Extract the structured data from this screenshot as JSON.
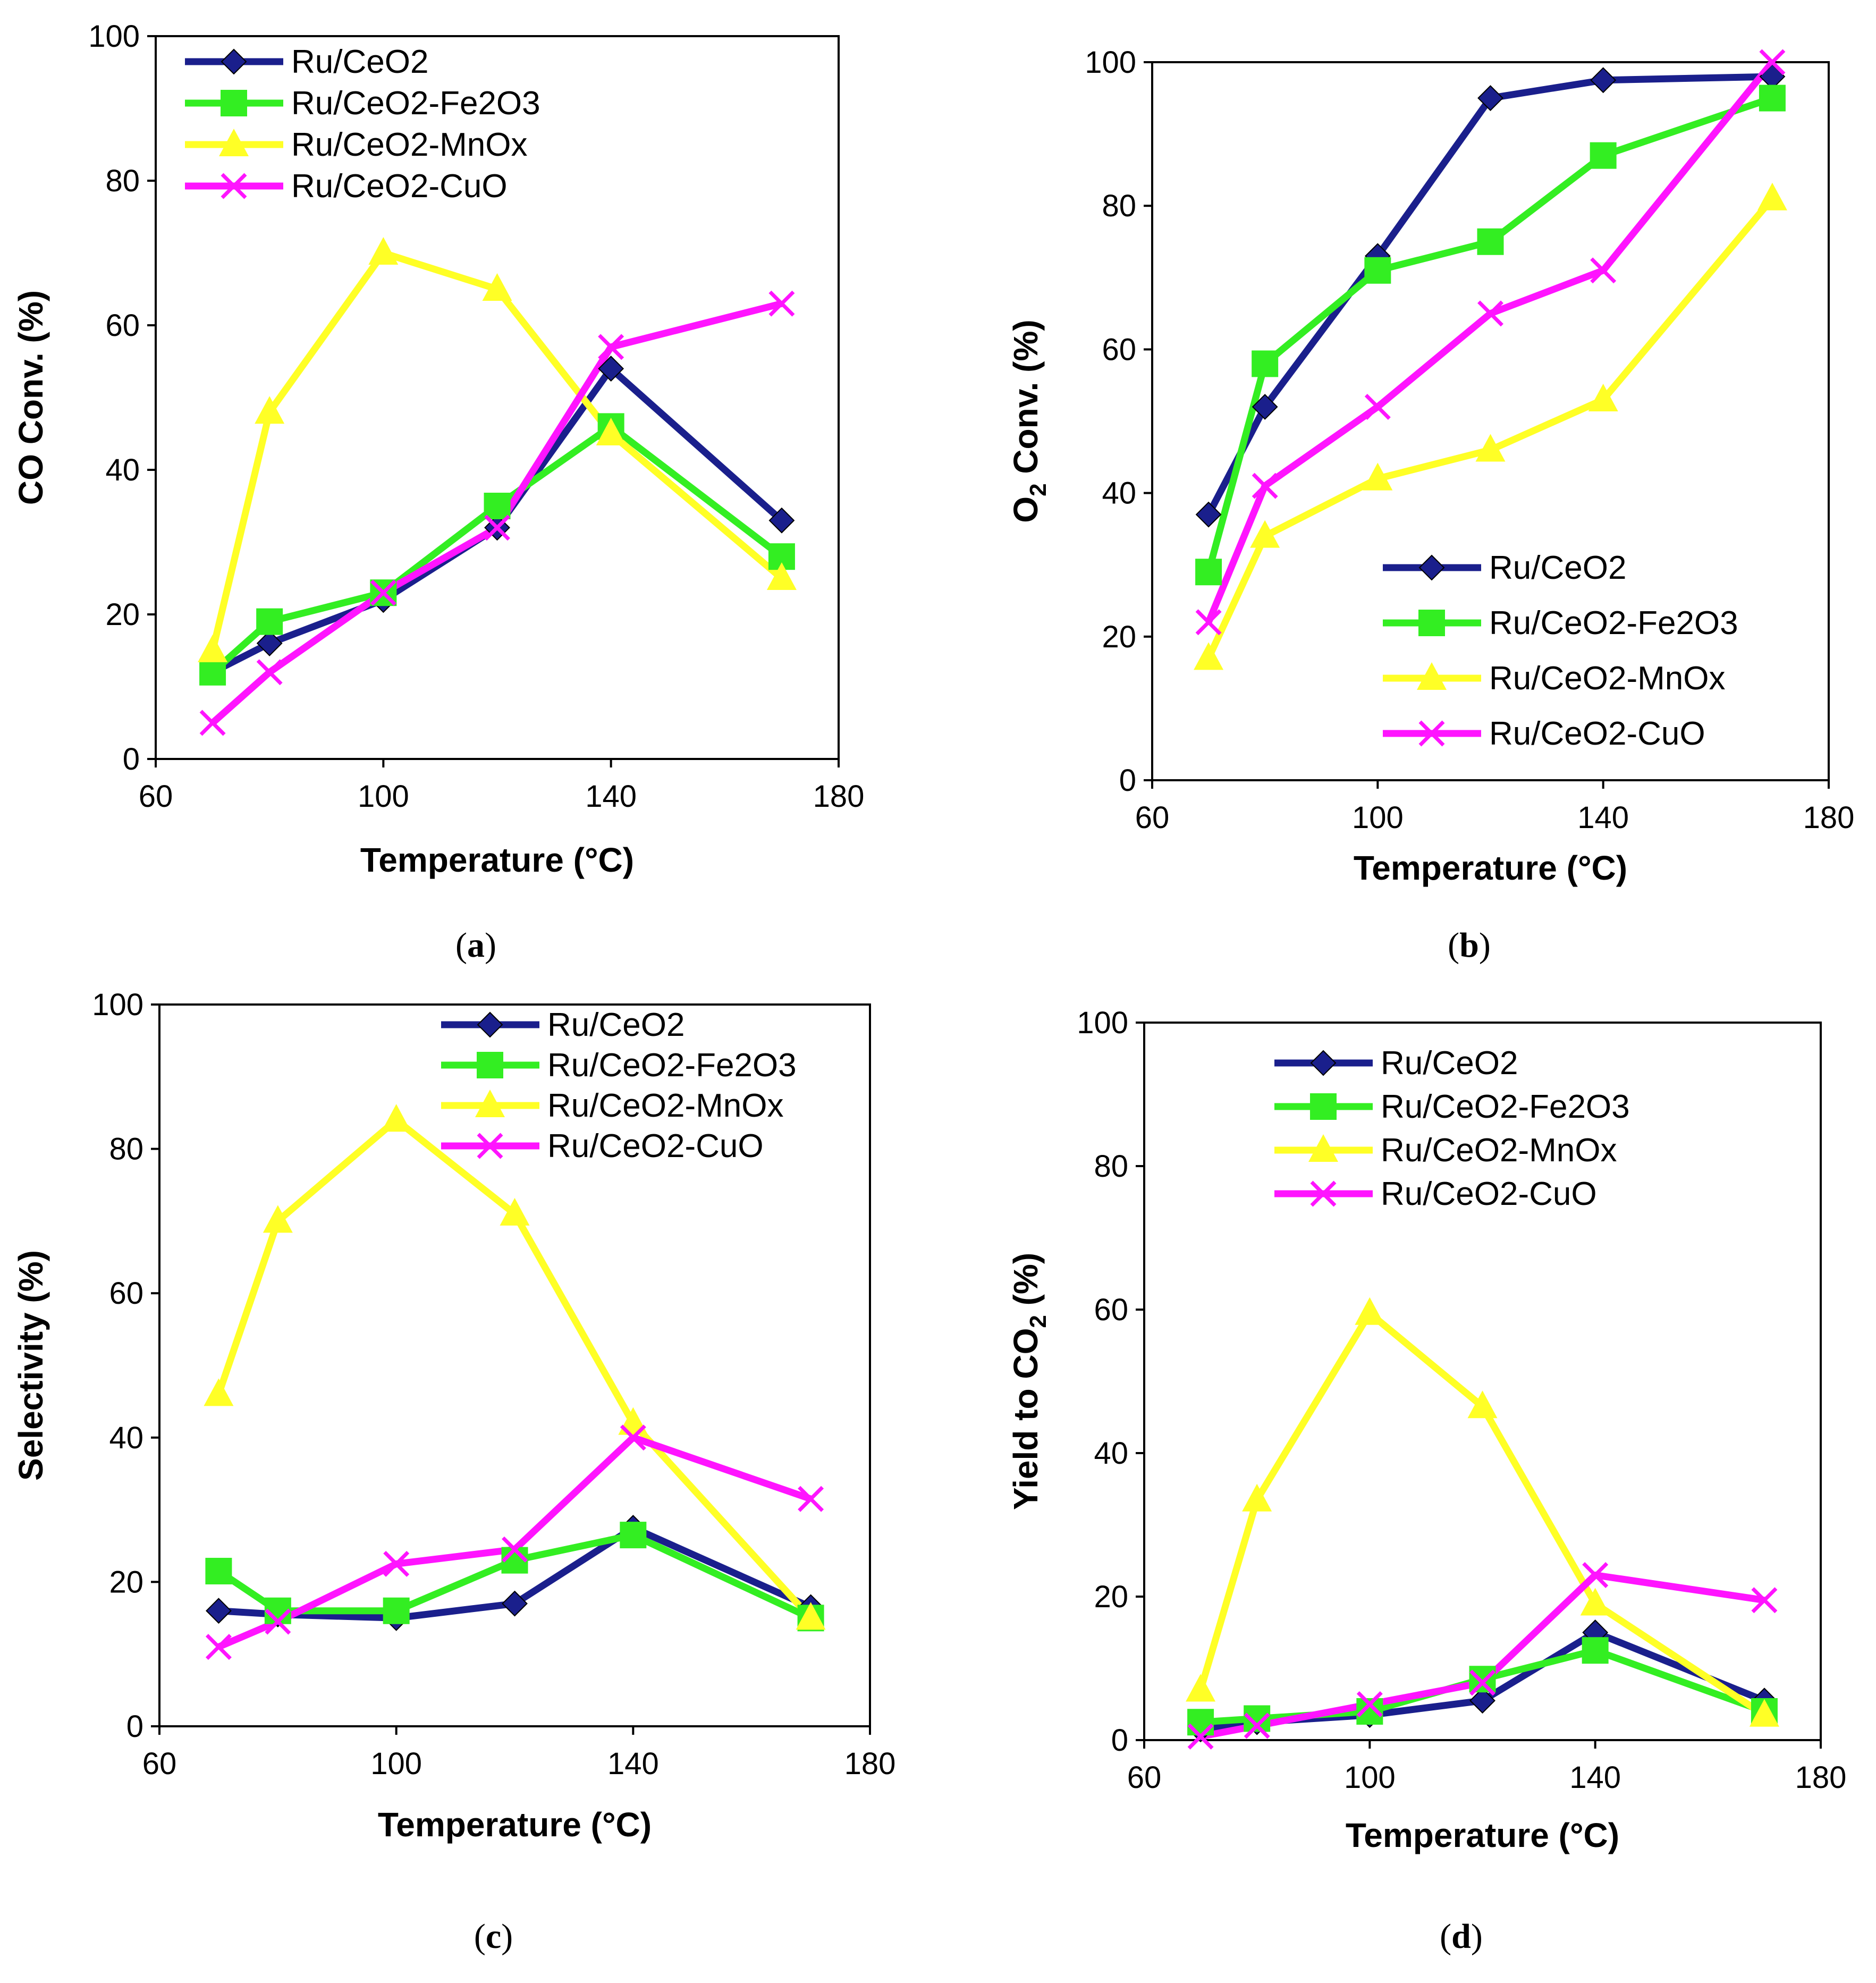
{
  "colors": {
    "Ru/CeO2": "#1a1f8c",
    "Ru/CeO2-Fe2O3": "#33ee22",
    "Ru/CeO2-MnOx": "#ffff26",
    "Ru/CeO2-CuO": "#ff14ff"
  },
  "chart_data": [
    {
      "type": "line",
      "caption_pre": "(",
      "caption_letter": "a",
      "caption_post": ")",
      "xlabel": "Temperature (°C)",
      "ylabel": "CO Conv.  (%)",
      "xlim": [
        60,
        180
      ],
      "ylim": [
        0,
        100
      ],
      "xticks": [
        60,
        100,
        140,
        180
      ],
      "yticks": [
        0,
        20,
        40,
        60,
        80,
        100
      ],
      "legend_position": "top-left",
      "x": [
        70,
        80,
        100,
        120,
        140,
        170
      ],
      "series": [
        {
          "name": "Ru/CeO2",
          "marker": "diamond",
          "values": [
            12,
            16,
            22,
            32,
            54,
            33
          ]
        },
        {
          "name": "Ru/CeO2-Fe2O3",
          "marker": "square",
          "values": [
            12,
            19,
            23,
            35,
            46,
            28
          ]
        },
        {
          "name": "Ru/CeO2-MnOx",
          "marker": "triangle",
          "values": [
            15,
            48,
            70,
            65,
            45,
            25
          ]
        },
        {
          "name": "Ru/CeO2-CuO",
          "marker": "x",
          "values": [
            5,
            12,
            23,
            32,
            57,
            63
          ]
        }
      ]
    },
    {
      "type": "line",
      "caption_pre": "(",
      "caption_letter": "b",
      "caption_post": ")",
      "xlabel": "Temperature (°C)",
      "ylabel_main": "O",
      "ylabel_sub": "2",
      "ylabel_rest": " Conv.  (%)",
      "xlim": [
        60,
        180
      ],
      "ylim": [
        0,
        100
      ],
      "xticks": [
        60,
        100,
        140,
        180
      ],
      "yticks": [
        0,
        20,
        40,
        60,
        80,
        100
      ],
      "legend_position": "bottom-right",
      "x": [
        70,
        80,
        100,
        120,
        140,
        170
      ],
      "series": [
        {
          "name": "Ru/CeO2",
          "marker": "diamond",
          "values": [
            37,
            52,
            73,
            95,
            97.5,
            98
          ]
        },
        {
          "name": "Ru/CeO2-Fe2O3",
          "marker": "square",
          "values": [
            29,
            58,
            71,
            75,
            87,
            95
          ]
        },
        {
          "name": "Ru/CeO2-MnOx",
          "marker": "triangle",
          "values": [
            17,
            34,
            42,
            46,
            53,
            81
          ]
        },
        {
          "name": "Ru/CeO2-CuO",
          "marker": "x",
          "values": [
            22,
            41,
            52,
            65,
            71,
            100
          ]
        }
      ]
    },
    {
      "type": "line",
      "caption_pre": "(",
      "caption_letter": "c",
      "caption_post": ")",
      "xlabel": "Temperature (°C)",
      "ylabel": "Selectivity  (%)",
      "xlim": [
        60,
        180
      ],
      "ylim": [
        0,
        100
      ],
      "xticks": [
        60,
        100,
        140,
        180
      ],
      "yticks": [
        0,
        20,
        40,
        60,
        80,
        100
      ],
      "legend_position": "top-right",
      "x": [
        70,
        80,
        100,
        120,
        140,
        170
      ],
      "series": [
        {
          "name": "Ru/CeO2",
          "marker": "diamond",
          "values": [
            16,
            15.5,
            15,
            17,
            27.5,
            16.5
          ]
        },
        {
          "name": "Ru/CeO2-Fe2O3",
          "marker": "square",
          "values": [
            21.5,
            16,
            16,
            23,
            26.5,
            15
          ]
        },
        {
          "name": "Ru/CeO2-MnOx",
          "marker": "triangle",
          "values": [
            46,
            70,
            84,
            71,
            42,
            15
          ]
        },
        {
          "name": "Ru/CeO2-CuO",
          "marker": "x",
          "values": [
            11,
            14.5,
            22.5,
            24.5,
            40,
            31.5
          ]
        }
      ]
    },
    {
      "type": "line",
      "caption_pre": "(",
      "caption_letter": "d",
      "caption_post": ")",
      "xlabel": "Temperature (°C)",
      "ylabel_main": "Yield to CO",
      "ylabel_sub": "2",
      "ylabel_rest": " (%)",
      "xlim": [
        60,
        180
      ],
      "ylim": [
        0,
        100
      ],
      "xticks": [
        60,
        100,
        140,
        180
      ],
      "yticks": [
        0,
        20,
        40,
        60,
        80,
        100
      ],
      "legend_position": "top-left",
      "x": [
        70,
        80,
        100,
        120,
        140,
        170
      ],
      "series": [
        {
          "name": "Ru/CeO2",
          "marker": "diamond",
          "values": [
            1.5,
            2.5,
            3.5,
            5.5,
            15,
            5.5
          ]
        },
        {
          "name": "Ru/CeO2-Fe2O3",
          "marker": "square",
          "values": [
            2.5,
            3,
            4,
            8.5,
            12.5,
            4
          ]
        },
        {
          "name": "Ru/CeO2-MnOx",
          "marker": "triangle",
          "values": [
            7,
            33.5,
            59.5,
            46.5,
            19,
            3.5
          ]
        },
        {
          "name": "Ru/CeO2-CuO",
          "marker": "x",
          "values": [
            0.5,
            2,
            5,
            8,
            23,
            19.5
          ]
        }
      ]
    }
  ]
}
